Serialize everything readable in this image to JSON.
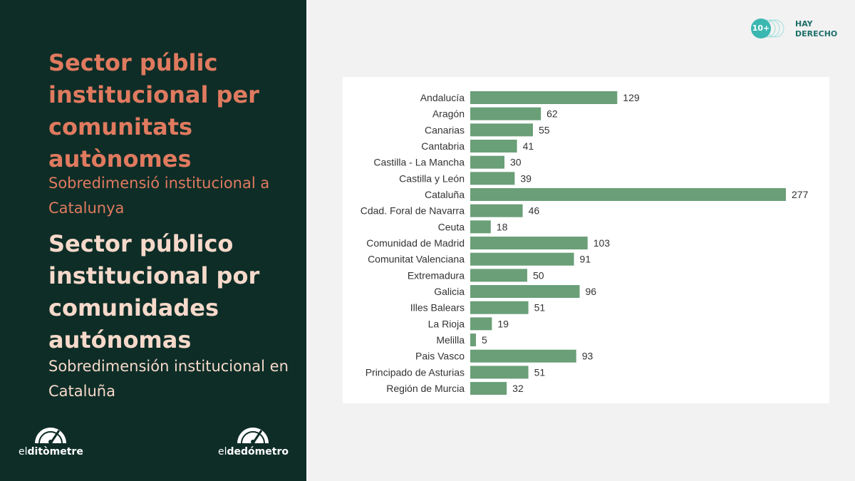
{
  "left_panel": {
    "title_ca": "Sector públic institucional per comunitats autònomes",
    "subtitle_ca": "Sobredimensió institucional a Catalunya",
    "title_es": "Sector público institucional por comunidades autónomas",
    "subtitle_es": "Sobredimensión institucional en Cataluña",
    "logo_ca": {
      "prefix": "el",
      "bold": "ditòmetre"
    },
    "logo_es": {
      "prefix": "el",
      "bold": "dedómetro"
    }
  },
  "brand": {
    "badge": "10+",
    "line1": "HAY",
    "line2": "DERECHO"
  },
  "colors": {
    "panel_bg": "#0e2d27",
    "accent_orange": "#e07a5f",
    "accent_peach": "#f6d9ca",
    "bar_color": "#6a9f78",
    "brand_teal": "#3bb7b1"
  },
  "chart_data": {
    "type": "bar",
    "orientation": "horizontal",
    "categories": [
      "Andalucía",
      "Aragón",
      "Canarias",
      "Cantabria",
      "Castilla - La Mancha",
      "Castilla y León",
      "Cataluña",
      "Cdad. Foral de Navarra",
      "Ceuta",
      "Comunidad de Madrid",
      "Comunitat Valenciana",
      "Extremadura",
      "Galicia",
      "Illes Balears",
      "La Rioja",
      "Melilla",
      "Pais Vasco",
      "Principado de Asturias",
      "Región de Murcia"
    ],
    "values": [
      129,
      62,
      55,
      41,
      30,
      39,
      277,
      46,
      18,
      103,
      91,
      50,
      96,
      51,
      19,
      5,
      93,
      51,
      32
    ],
    "xlim": [
      0,
      277
    ],
    "grid": false,
    "legend": "none"
  }
}
